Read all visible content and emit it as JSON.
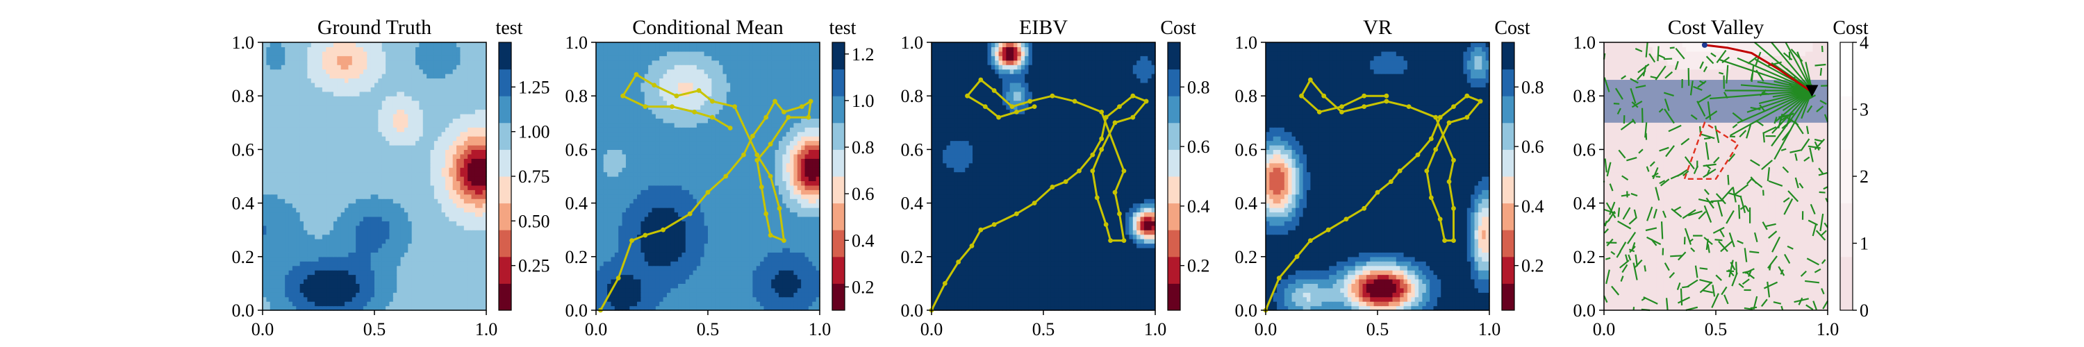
{
  "chart_data": [
    {
      "type": "heatmap",
      "title": "Ground Truth",
      "colorbar_label": "test",
      "xlim": [
        0.0,
        1.0
      ],
      "ylim": [
        0.0,
        1.0
      ],
      "x_ticks": [
        "0.0",
        "0.5",
        "1.0"
      ],
      "y_ticks": [
        "0.0",
        "0.2",
        "0.4",
        "0.6",
        "0.8",
        "1.0"
      ],
      "colorbar_range": [
        0.0,
        1.5
      ],
      "colorbar_ticks": [
        {
          "value": 0.25,
          "label": "0.25"
        },
        {
          "value": 0.5,
          "label": "0.50"
        },
        {
          "value": 0.75,
          "label": "0.75"
        },
        {
          "value": 1.0,
          "label": "1.00"
        },
        {
          "value": 1.25,
          "label": "1.25"
        }
      ],
      "colormap": "RdBu",
      "field": {
        "base": 0.95,
        "blobs": [
          {
            "x": 0.97,
            "y": 0.52,
            "sx": 0.13,
            "sy": 0.13,
            "a": -0.95
          },
          {
            "x": 0.37,
            "y": 0.93,
            "sx": 0.13,
            "sy": 0.09,
            "a": -0.38
          },
          {
            "x": 0.62,
            "y": 0.71,
            "sx": 0.08,
            "sy": 0.08,
            "a": -0.25
          },
          {
            "x": 0.3,
            "y": 0.08,
            "sx": 0.22,
            "sy": 0.12,
            "a": 0.55
          },
          {
            "x": 0.5,
            "y": 0.3,
            "sx": 0.16,
            "sy": 0.12,
            "a": 0.3
          },
          {
            "x": 0.0,
            "y": 0.3,
            "sx": 0.18,
            "sy": 0.14,
            "a": 0.25
          },
          {
            "x": 0.78,
            "y": 0.95,
            "sx": 0.12,
            "sy": 0.1,
            "a": 0.2
          },
          {
            "x": 0.06,
            "y": 0.95,
            "sx": 0.08,
            "sy": 0.08,
            "a": 0.15
          }
        ]
      }
    },
    {
      "type": "heatmap",
      "title": "Conditional Mean",
      "colorbar_label": "test",
      "xlim": [
        0.0,
        1.0
      ],
      "ylim": [
        0.0,
        1.0
      ],
      "x_ticks": [
        "0.0",
        "0.5",
        "1.0"
      ],
      "y_ticks": [
        "0.0",
        "0.2",
        "0.4",
        "0.6",
        "0.8",
        "1.0"
      ],
      "colorbar_range": [
        0.1,
        1.25
      ],
      "colorbar_ticks": [
        {
          "value": 0.2,
          "label": "0.2"
        },
        {
          "value": 0.4,
          "label": "0.4"
        },
        {
          "value": 0.6,
          "label": "0.6"
        },
        {
          "value": 0.8,
          "label": "0.8"
        },
        {
          "value": 1.0,
          "label": "1.0"
        },
        {
          "value": 1.2,
          "label": "1.2"
        }
      ],
      "colormap": "RdBu",
      "field": {
        "base": 0.98,
        "blobs": [
          {
            "x": 0.97,
            "y": 0.53,
            "sx": 0.11,
            "sy": 0.12,
            "a": -0.88
          },
          {
            "x": 0.4,
            "y": 0.83,
            "sx": 0.16,
            "sy": 0.12,
            "a": -0.32
          },
          {
            "x": 0.3,
            "y": 0.28,
            "sx": 0.14,
            "sy": 0.14,
            "a": 0.28
          },
          {
            "x": 0.12,
            "y": 0.06,
            "sx": 0.12,
            "sy": 0.1,
            "a": 0.22
          },
          {
            "x": 0.85,
            "y": 0.1,
            "sx": 0.12,
            "sy": 0.1,
            "a": 0.2
          },
          {
            "x": 0.08,
            "y": 0.55,
            "sx": 0.1,
            "sy": 0.1,
            "a": -0.1
          }
        ]
      },
      "path": [
        [
          0.02,
          0.0
        ],
        [
          0.1,
          0.12
        ],
        [
          0.16,
          0.26
        ],
        [
          0.22,
          0.28
        ],
        [
          0.3,
          0.3
        ],
        [
          0.42,
          0.36
        ],
        [
          0.5,
          0.44
        ],
        [
          0.58,
          0.5
        ],
        [
          0.66,
          0.58
        ],
        [
          0.7,
          0.65
        ],
        [
          0.76,
          0.72
        ],
        [
          0.8,
          0.78
        ],
        [
          0.84,
          0.74
        ],
        [
          0.92,
          0.76
        ],
        [
          0.96,
          0.78
        ],
        [
          0.95,
          0.72
        ],
        [
          0.86,
          0.72
        ],
        [
          0.78,
          0.62
        ],
        [
          0.72,
          0.56
        ],
        [
          0.74,
          0.46
        ],
        [
          0.76,
          0.36
        ],
        [
          0.78,
          0.28
        ],
        [
          0.84,
          0.26
        ],
        [
          0.82,
          0.38
        ],
        [
          0.78,
          0.5
        ],
        [
          0.72,
          0.58
        ],
        [
          0.62,
          0.76
        ],
        [
          0.52,
          0.78
        ],
        [
          0.46,
          0.82
        ],
        [
          0.36,
          0.8
        ],
        [
          0.26,
          0.84
        ],
        [
          0.18,
          0.88
        ],
        [
          0.12,
          0.8
        ],
        [
          0.22,
          0.76
        ],
        [
          0.34,
          0.76
        ],
        [
          0.44,
          0.74
        ],
        [
          0.52,
          0.72
        ],
        [
          0.6,
          0.68
        ]
      ],
      "path_color": "#c8c400"
    },
    {
      "type": "heatmap",
      "title": "EIBV",
      "colorbar_label": "Cost",
      "xlim": [
        0.0,
        1.0
      ],
      "ylim": [
        0.0,
        1.0
      ],
      "x_ticks": [
        "0.0",
        "0.5",
        "1.0"
      ],
      "y_ticks": [
        "0.0",
        "0.2",
        "0.4",
        "0.6",
        "0.8",
        "1.0"
      ],
      "colorbar_range": [
        0.05,
        0.95
      ],
      "colorbar_ticks": [
        {
          "value": 0.2,
          "label": "0.2"
        },
        {
          "value": 0.4,
          "label": "0.4"
        },
        {
          "value": 0.6,
          "label": "0.6"
        },
        {
          "value": 0.8,
          "label": "0.8"
        }
      ],
      "colormap": "RdBu",
      "field": {
        "base": 0.95,
        "blobs": [
          {
            "x": 0.35,
            "y": 0.96,
            "sx": 0.07,
            "sy": 0.06,
            "a": -0.92
          },
          {
            "x": 0.97,
            "y": 0.32,
            "sx": 0.07,
            "sy": 0.06,
            "a": -0.9
          },
          {
            "x": 0.38,
            "y": 0.8,
            "sx": 0.06,
            "sy": 0.06,
            "a": -0.3
          },
          {
            "x": 0.12,
            "y": 0.58,
            "sx": 0.08,
            "sy": 0.07,
            "a": -0.18
          },
          {
            "x": 0.95,
            "y": 0.9,
            "sx": 0.06,
            "sy": 0.06,
            "a": -0.15
          }
        ]
      },
      "path": [
        [
          0.0,
          0.0
        ],
        [
          0.06,
          0.1
        ],
        [
          0.12,
          0.18
        ],
        [
          0.18,
          0.24
        ],
        [
          0.22,
          0.3
        ],
        [
          0.28,
          0.32
        ],
        [
          0.38,
          0.36
        ],
        [
          0.46,
          0.4
        ],
        [
          0.54,
          0.46
        ],
        [
          0.6,
          0.48
        ],
        [
          0.66,
          0.52
        ],
        [
          0.72,
          0.58
        ],
        [
          0.76,
          0.64
        ],
        [
          0.78,
          0.72
        ],
        [
          0.84,
          0.76
        ],
        [
          0.9,
          0.8
        ],
        [
          0.96,
          0.78
        ],
        [
          0.9,
          0.72
        ],
        [
          0.82,
          0.7
        ],
        [
          0.76,
          0.6
        ],
        [
          0.72,
          0.52
        ],
        [
          0.74,
          0.42
        ],
        [
          0.78,
          0.32
        ],
        [
          0.8,
          0.26
        ],
        [
          0.86,
          0.26
        ],
        [
          0.84,
          0.36
        ],
        [
          0.82,
          0.44
        ],
        [
          0.86,
          0.52
        ],
        [
          0.76,
          0.74
        ],
        [
          0.64,
          0.78
        ],
        [
          0.54,
          0.8
        ],
        [
          0.44,
          0.78
        ],
        [
          0.36,
          0.76
        ],
        [
          0.28,
          0.82
        ],
        [
          0.22,
          0.86
        ],
        [
          0.16,
          0.8
        ],
        [
          0.24,
          0.76
        ],
        [
          0.3,
          0.72
        ],
        [
          0.38,
          0.74
        ],
        [
          0.46,
          0.76
        ]
      ],
      "path_color": "#c8c400"
    },
    {
      "type": "heatmap",
      "title": "VR",
      "colorbar_label": "Cost",
      "xlim": [
        0.0,
        1.0
      ],
      "ylim": [
        0.0,
        1.0
      ],
      "x_ticks": [
        "0.0",
        "0.5",
        "1.0"
      ],
      "y_ticks": [
        "0.0",
        "0.2",
        "0.4",
        "0.6",
        "0.8",
        "1.0"
      ],
      "colorbar_range": [
        0.05,
        0.95
      ],
      "colorbar_ticks": [
        {
          "value": 0.2,
          "label": "0.2"
        },
        {
          "value": 0.4,
          "label": "0.4"
        },
        {
          "value": 0.6,
          "label": "0.6"
        },
        {
          "value": 0.8,
          "label": "0.8"
        }
      ],
      "colormap": "RdBu",
      "field": {
        "base": 0.95,
        "blobs": [
          {
            "x": 0.52,
            "y": 0.08,
            "sx": 0.17,
            "sy": 0.09,
            "a": -0.95
          },
          {
            "x": 0.05,
            "y": 0.48,
            "sx": 0.1,
            "sy": 0.14,
            "a": -0.72
          },
          {
            "x": 0.98,
            "y": 0.28,
            "sx": 0.06,
            "sy": 0.16,
            "a": -0.55
          },
          {
            "x": 0.18,
            "y": 0.05,
            "sx": 0.12,
            "sy": 0.08,
            "a": -0.35
          },
          {
            "x": 0.95,
            "y": 0.92,
            "sx": 0.06,
            "sy": 0.08,
            "a": -0.3
          },
          {
            "x": 0.55,
            "y": 0.92,
            "sx": 0.12,
            "sy": 0.06,
            "a": -0.15
          }
        ]
      },
      "path": [
        [
          0.0,
          0.0
        ],
        [
          0.06,
          0.12
        ],
        [
          0.14,
          0.2
        ],
        [
          0.2,
          0.26
        ],
        [
          0.28,
          0.3
        ],
        [
          0.36,
          0.34
        ],
        [
          0.44,
          0.38
        ],
        [
          0.5,
          0.44
        ],
        [
          0.56,
          0.48
        ],
        [
          0.6,
          0.52
        ],
        [
          0.68,
          0.58
        ],
        [
          0.74,
          0.64
        ],
        [
          0.78,
          0.72
        ],
        [
          0.84,
          0.76
        ],
        [
          0.9,
          0.8
        ],
        [
          0.96,
          0.78
        ],
        [
          0.9,
          0.72
        ],
        [
          0.82,
          0.7
        ],
        [
          0.76,
          0.6
        ],
        [
          0.72,
          0.52
        ],
        [
          0.74,
          0.42
        ],
        [
          0.78,
          0.34
        ],
        [
          0.8,
          0.26
        ],
        [
          0.84,
          0.26
        ],
        [
          0.84,
          0.38
        ],
        [
          0.82,
          0.48
        ],
        [
          0.84,
          0.56
        ],
        [
          0.76,
          0.72
        ],
        [
          0.64,
          0.76
        ],
        [
          0.54,
          0.78
        ],
        [
          0.44,
          0.76
        ],
        [
          0.34,
          0.74
        ],
        [
          0.26,
          0.8
        ],
        [
          0.2,
          0.86
        ],
        [
          0.16,
          0.8
        ],
        [
          0.24,
          0.74
        ],
        [
          0.34,
          0.76
        ],
        [
          0.44,
          0.8
        ],
        [
          0.54,
          0.8
        ]
      ],
      "path_color": "#c8c400"
    },
    {
      "type": "heatmap",
      "title": "Cost Valley",
      "colorbar_label": "Cost",
      "xlim": [
        0.0,
        1.0
      ],
      "ylim": [
        0.0,
        1.0
      ],
      "x_ticks": [
        "0.0",
        "0.5",
        "1.0"
      ],
      "y_ticks": [
        "0.0",
        "0.2",
        "0.4",
        "0.6",
        "0.8",
        "1.0"
      ],
      "colorbar_range": [
        0.0,
        4.0
      ],
      "colorbar_ticks": [
        {
          "value": 0,
          "label": "0"
        },
        {
          "value": 1,
          "label": "1"
        },
        {
          "value": 2,
          "label": "2"
        },
        {
          "value": 3,
          "label": "3"
        },
        {
          "value": 4,
          "label": "4"
        }
      ],
      "colormap": "pink-white",
      "field": {
        "base": 0.25,
        "blobs": [
          {
            "x": 0.45,
            "y": 1.0,
            "sx": 0.24,
            "sy": 0.1,
            "a": 1.6
          },
          {
            "x": 0.85,
            "y": 1.0,
            "sx": 0.14,
            "sy": 0.08,
            "a": 0.8
          }
        ]
      },
      "band": {
        "y_min": 0.7,
        "y_max": 0.86,
        "color": "#7487b3"
      },
      "obstacle_polygon": [
        [
          0.45,
          0.7
        ],
        [
          0.36,
          0.49
        ],
        [
          0.5,
          0.49
        ],
        [
          0.6,
          0.62
        ]
      ],
      "rrt_color": "#228b22",
      "best_path": [
        [
          0.92,
          0.82
        ],
        [
          0.78,
          0.9
        ],
        [
          0.66,
          0.96
        ],
        [
          0.55,
          0.98
        ],
        [
          0.45,
          0.99
        ]
      ],
      "best_path_color": "#c00000",
      "start": [
        0.45,
        0.99
      ],
      "goal": [
        0.93,
        0.82
      ]
    }
  ]
}
